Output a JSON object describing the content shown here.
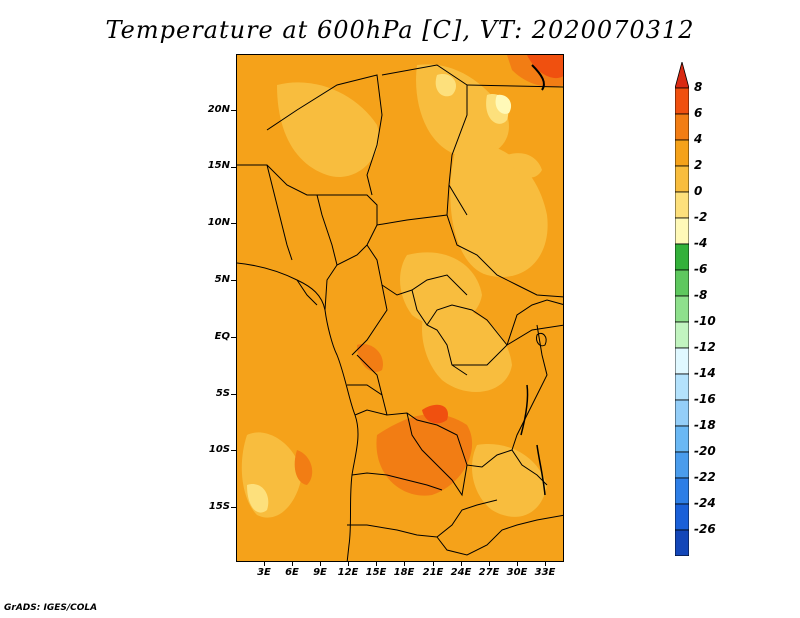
{
  "title": "Temperature at 600hPa [C], VT: 2020070312",
  "credit": "GrADS: IGES/COLA",
  "map": {
    "lat_labels": [
      "20N",
      "15N",
      "10N",
      "5N",
      "EQ",
      "5S",
      "10S",
      "15S"
    ],
    "lon_labels": [
      "3E",
      "6E",
      "9E",
      "12E",
      "15E",
      "18E",
      "21E",
      "24E",
      "27E",
      "30E",
      "33E"
    ]
  },
  "colorbar": {
    "labels": [
      "8",
      "6",
      "4",
      "2",
      "0",
      "-2",
      "-4",
      "-6",
      "-8",
      "-10",
      "-12",
      "-14",
      "-16",
      "-18",
      "-20",
      "-22",
      "-24",
      "-26"
    ],
    "colors": [
      "#d92a13",
      "#f0500f",
      "#f27d14",
      "#f5a21a",
      "#f8bd3e",
      "#fde07c",
      "#fff9b8",
      "#33b13a",
      "#5ec85e",
      "#8ee08c",
      "#c2f4c0",
      "#e0f8ff",
      "#b4e2fc",
      "#94cef8",
      "#6ab8f4",
      "#4a9cec",
      "#2d7ee6",
      "#1a60d8",
      "#1346b8",
      "#0d2c94",
      "#0a1460",
      "#d6dbf8"
    ]
  }
}
